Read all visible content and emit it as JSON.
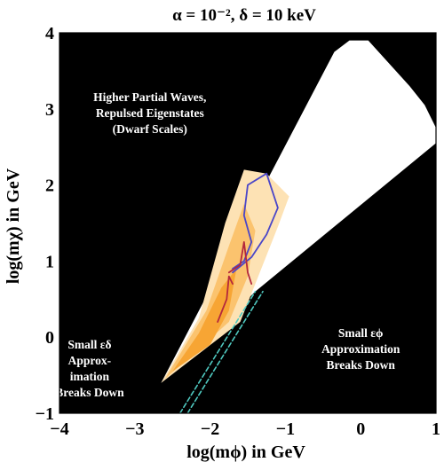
{
  "chart_data": {
    "type": "area",
    "title": "α = 10⁻², δ = 10 keV",
    "xlabel": "log(mϕ) in GeV",
    "ylabel": "log(mχ) in GeV",
    "xlim": [
      -4,
      1
    ],
    "ylim": [
      -1,
      4
    ],
    "x_ticks": [
      "−4",
      "−3",
      "−2",
      "−1",
      "0",
      "1"
    ],
    "y_ticks": [
      "−1",
      "0",
      "1",
      "2",
      "3",
      "4"
    ],
    "background_color": "#000000",
    "regions": [
      {
        "color": "#ffffff",
        "points": [
          [
            -2.65,
            -0.6
          ],
          [
            -0.35,
            3.75
          ],
          [
            -0.15,
            3.9
          ],
          [
            0.1,
            3.9
          ],
          [
            0.65,
            3.3
          ],
          [
            0.85,
            3.05
          ],
          [
            1.0,
            2.75
          ],
          [
            1.0,
            2.55
          ],
          [
            -1.4,
            0.6
          ]
        ]
      },
      {
        "color": "#fde2b4",
        "points": [
          [
            -2.65,
            -0.6
          ],
          [
            -2.15,
            0.25
          ],
          [
            -1.8,
            1.5
          ],
          [
            -1.55,
            2.2
          ],
          [
            -1.25,
            2.15
          ],
          [
            -0.95,
            1.85
          ],
          [
            -1.1,
            1.45
          ],
          [
            -1.4,
            0.7
          ],
          [
            -1.6,
            0.2
          ]
        ]
      },
      {
        "color": "#fbc36e",
        "points": [
          [
            -2.6,
            -0.55
          ],
          [
            -2.05,
            0.35
          ],
          [
            -1.75,
            1.2
          ],
          [
            -1.55,
            1.75
          ],
          [
            -1.4,
            1.4
          ],
          [
            -1.5,
            0.8
          ],
          [
            -1.75,
            0.2
          ]
        ]
      },
      {
        "color": "#f7a534",
        "points": [
          [
            -2.5,
            -0.45
          ],
          [
            -2.15,
            0.05
          ],
          [
            -1.85,
            0.65
          ],
          [
            -1.65,
            0.9
          ],
          [
            -1.75,
            0.35
          ],
          [
            -2.0,
            -0.1
          ]
        ]
      }
    ],
    "series": [
      {
        "color": "#4a46c8",
        "x": [
          -1.7,
          -1.55,
          -1.45,
          -1.55,
          -1.5,
          -1.25,
          -1.1,
          -1.25,
          -1.45,
          -1.7
        ],
        "y": [
          0.9,
          1.0,
          1.25,
          1.6,
          2.0,
          2.15,
          1.7,
          1.35,
          1.05,
          0.85
        ]
      },
      {
        "color": "#b4283c",
        "x": [
          -1.75,
          -1.6,
          -1.55,
          -1.5,
          -1.45
        ],
        "y": [
          0.85,
          0.95,
          1.25,
          0.85,
          0.7
        ]
      },
      {
        "color": "#b4283c",
        "x": [
          -1.9,
          -1.78,
          -1.75,
          -1.7
        ],
        "y": [
          0.2,
          0.5,
          0.8,
          0.7
        ]
      },
      {
        "color": "#4fc9c0",
        "dashed": true,
        "x": [
          -2.4,
          -1.4
        ],
        "y": [
          -1.0,
          0.6
        ]
      },
      {
        "color": "#4fc9c0",
        "dashed": true,
        "x": [
          -2.3,
          -1.3
        ],
        "y": [
          -1.0,
          0.6
        ]
      }
    ],
    "annotations": [
      {
        "lines": [
          "Higher Partial Waves,",
          "Repulsed Eigenstates",
          "(Dwarf Scales)"
        ],
        "x": -2.8,
        "y": 3.1
      },
      {
        "lines": [
          "Small εδ",
          "Approx-",
          "imation",
          "Breaks Down"
        ],
        "x": -3.6,
        "y": -0.15
      },
      {
        "lines": [
          "Small εϕ",
          "Approximation",
          "Breaks Down"
        ],
        "x": 0.0,
        "y": 0.0
      }
    ]
  }
}
